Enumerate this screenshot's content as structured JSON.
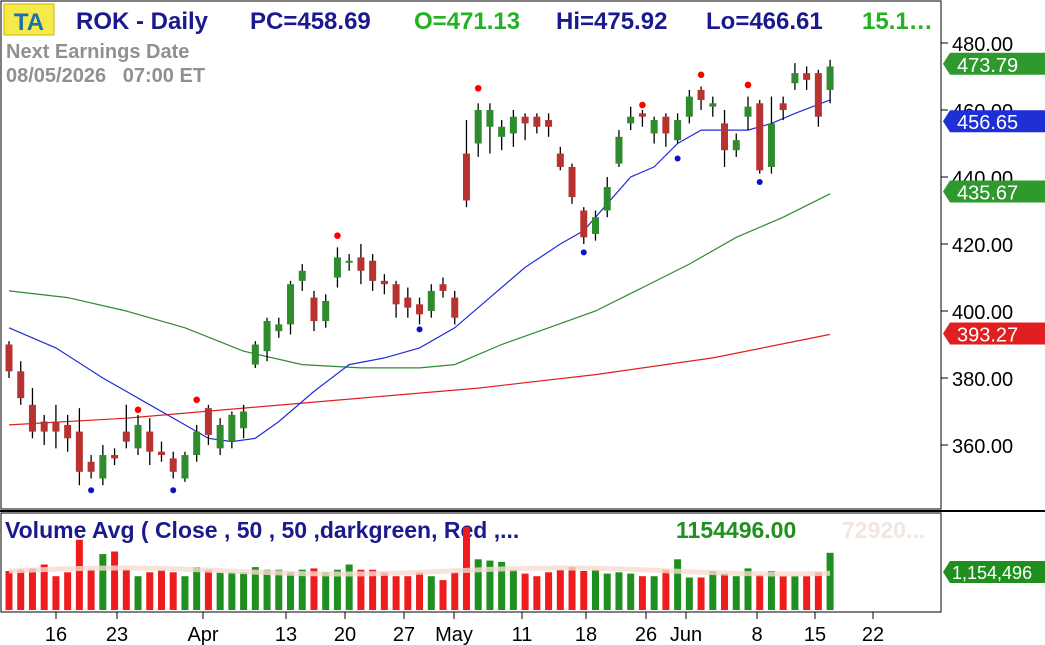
{
  "header": {
    "logo": "TA",
    "symbol": "ROK - Daily",
    "pc": "PC=458.69",
    "open": "O=471.13",
    "high": "Hi=475.92",
    "low": "Lo=466.61",
    "change": "15.1…",
    "earnings_label": "Next Earnings Date",
    "earnings_value": "08/05/2026   07:00 ET"
  },
  "volume_header": {
    "title": "Volume Avg ( Close , 50 , 50 ,darkgreen, Red ,...",
    "value": "1154496.00",
    "faded_value": "72920..."
  },
  "colors": {
    "up": "#2e8b2e",
    "down": "#b83232",
    "ma_fast": "#1f2fd6",
    "ma_mid": "#2e8b2e",
    "ma_slow": "#e02020",
    "header_blue": "#1a1a8c",
    "header_green": "#22b222",
    "marker_high": "#ff0000",
    "marker_low": "#1010c0",
    "vol_up": "#1f8f1f",
    "vol_down": "#ee1c1c"
  },
  "chart_data": {
    "type": "candlestick",
    "price_axis": {
      "ticks": [
        360,
        380,
        400,
        420,
        440,
        460,
        480
      ],
      "tick_labels": [
        "360.00",
        "380.00",
        "400.00",
        "420.00",
        "440.00",
        "460.00",
        "480.00"
      ]
    },
    "x_axis_labels": [
      "16",
      "23",
      "Apr",
      "13",
      "20",
      "27",
      "May",
      "11",
      "18",
      "26",
      "Jun",
      "8",
      "15",
      "22"
    ],
    "price_tags": [
      {
        "value": 473.79,
        "label": "473.79",
        "color": "#2e9a2e"
      },
      {
        "value": 456.65,
        "label": "456.65",
        "color": "#1f2fd6"
      },
      {
        "value": 435.67,
        "label": "435.67",
        "color": "#2e9a2e"
      },
      {
        "value": 393.27,
        "label": "393.27",
        "color": "#e02020"
      }
    ],
    "volume_tag": {
      "label": "1,154,496",
      "color": "#1f8f1f"
    },
    "candles": [
      [
        390,
        382,
        391,
        380,
        "d"
      ],
      [
        382,
        374,
        385,
        372,
        "d"
      ],
      [
        372,
        364,
        377,
        362,
        "d"
      ],
      [
        364,
        367,
        369,
        360,
        "d"
      ],
      [
        367,
        364,
        372,
        359,
        "d"
      ],
      [
        366,
        362,
        369,
        358,
        "d"
      ],
      [
        364,
        352,
        371,
        348,
        "d"
      ],
      [
        352,
        355,
        357,
        350,
        "d"
      ],
      [
        350,
        357,
        360,
        348,
        "u"
      ],
      [
        357,
        356,
        359,
        354,
        "d"
      ],
      [
        364,
        361,
        372,
        359,
        "d"
      ],
      [
        359,
        366,
        369,
        357,
        "u"
      ],
      [
        364,
        358,
        368,
        354,
        "d"
      ],
      [
        358,
        357,
        361,
        355,
        "d"
      ],
      [
        356,
        352,
        358,
        350,
        "d"
      ],
      [
        350,
        357,
        358,
        349,
        "u"
      ],
      [
        357,
        364,
        366,
        355,
        "u"
      ],
      [
        371,
        363,
        372,
        360,
        "d"
      ],
      [
        359,
        366,
        368,
        357,
        "u"
      ],
      [
        361,
        369,
        370,
        359,
        "u"
      ],
      [
        365,
        370,
        372,
        362,
        "u"
      ],
      [
        384,
        390,
        391,
        383,
        "u"
      ],
      [
        388,
        397,
        398,
        385,
        "u"
      ],
      [
        394,
        396,
        398,
        392,
        "u"
      ],
      [
        396,
        408,
        409,
        393,
        "u"
      ],
      [
        409,
        412,
        414,
        406,
        "u"
      ],
      [
        404,
        397,
        406,
        394,
        "d"
      ],
      [
        397,
        403,
        405,
        395,
        "u"
      ],
      [
        410,
        416,
        419,
        407,
        "u"
      ],
      [
        415,
        415,
        417,
        412,
        "u"
      ],
      [
        416,
        412,
        420,
        408,
        "d"
      ],
      [
        415,
        409,
        417,
        406,
        "d"
      ],
      [
        409,
        408,
        411,
        405,
        "d"
      ],
      [
        408,
        402,
        409,
        398,
        "d"
      ],
      [
        404,
        401,
        407,
        398,
        "d"
      ],
      [
        402,
        399,
        404,
        396,
        "d"
      ],
      [
        400,
        406,
        408,
        398,
        "u"
      ],
      [
        408,
        406,
        410,
        404,
        "d"
      ],
      [
        404,
        398,
        406,
        396,
        "d"
      ],
      [
        447,
        433,
        457,
        431,
        "d"
      ],
      [
        450,
        460,
        462,
        446,
        "u"
      ],
      [
        455,
        460,
        462,
        447,
        "u"
      ],
      [
        452,
        455,
        457,
        448,
        "u"
      ],
      [
        453,
        458,
        460,
        449,
        "u"
      ],
      [
        458,
        456,
        459,
        451,
        "d"
      ],
      [
        458,
        455,
        459,
        453,
        "d"
      ],
      [
        457,
        455,
        459,
        452,
        "d"
      ],
      [
        447,
        443,
        449,
        442,
        "d"
      ],
      [
        443,
        434,
        444,
        432,
        "d"
      ],
      [
        430,
        422,
        431,
        420,
        "d"
      ],
      [
        423,
        428,
        430,
        421,
        "u"
      ],
      [
        430,
        437,
        440,
        428,
        "u"
      ],
      [
        444,
        452,
        454,
        443,
        "u"
      ],
      [
        456,
        458,
        461,
        454,
        "u"
      ],
      [
        459,
        458,
        460,
        455,
        "d"
      ],
      [
        453,
        457,
        458,
        450,
        "u"
      ],
      [
        458,
        453,
        459,
        449,
        "d"
      ],
      [
        451,
        457,
        459,
        450,
        "u"
      ],
      [
        458,
        464,
        466,
        456,
        "u"
      ],
      [
        466,
        463,
        467,
        460,
        "d"
      ],
      [
        461,
        462,
        464,
        458,
        "u"
      ],
      [
        456,
        448,
        460,
        443,
        "d"
      ],
      [
        448,
        451,
        453,
        446,
        "u"
      ],
      [
        458,
        461,
        464,
        454,
        "u"
      ],
      [
        462,
        442,
        463,
        441,
        "d"
      ],
      [
        443,
        456,
        464,
        441,
        "u"
      ],
      [
        462,
        460,
        464,
        457,
        "d"
      ],
      [
        468,
        471,
        474,
        466,
        "u"
      ],
      [
        471,
        469,
        473,
        466,
        "d"
      ],
      [
        471,
        458,
        472,
        455,
        "d"
      ],
      [
        466,
        473,
        475,
        462,
        "u"
      ]
    ],
    "ma_fast": [
      [
        0,
        395
      ],
      [
        4,
        389
      ],
      [
        8,
        380
      ],
      [
        12,
        372
      ],
      [
        15,
        366
      ],
      [
        17,
        362
      ],
      [
        19,
        361
      ],
      [
        21,
        362
      ],
      [
        23,
        367
      ],
      [
        26,
        376
      ],
      [
        29,
        384
      ],
      [
        32,
        386
      ],
      [
        35,
        389
      ],
      [
        38,
        395
      ],
      [
        41,
        404
      ],
      [
        44,
        413
      ],
      [
        47,
        420
      ],
      [
        49,
        424
      ],
      [
        51,
        432
      ],
      [
        53,
        440
      ],
      [
        55,
        443
      ],
      [
        57,
        450
      ],
      [
        59,
        454
      ],
      [
        61,
        454
      ],
      [
        63,
        454
      ],
      [
        65,
        456
      ],
      [
        67,
        459
      ],
      [
        70,
        463
      ]
    ],
    "ma_mid": [
      [
        0,
        406
      ],
      [
        5,
        404
      ],
      [
        10,
        400
      ],
      [
        15,
        395
      ],
      [
        20,
        388
      ],
      [
        25,
        384
      ],
      [
        30,
        383
      ],
      [
        35,
        383
      ],
      [
        38,
        384
      ],
      [
        42,
        390
      ],
      [
        46,
        395
      ],
      [
        50,
        400
      ],
      [
        54,
        407
      ],
      [
        58,
        414
      ],
      [
        62,
        422
      ],
      [
        66,
        428
      ],
      [
        70,
        435
      ]
    ],
    "ma_slow": [
      [
        0,
        366
      ],
      [
        10,
        368
      ],
      [
        20,
        371
      ],
      [
        30,
        374
      ],
      [
        40,
        377
      ],
      [
        50,
        381
      ],
      [
        60,
        386
      ],
      [
        70,
        393
      ]
    ],
    "high_markers": [
      [
        11,
        369
      ],
      [
        16,
        372
      ],
      [
        28,
        421
      ],
      [
        40,
        465
      ],
      [
        54,
        460
      ],
      [
        59,
        469
      ],
      [
        63,
        466
      ]
    ],
    "low_markers": [
      [
        7,
        348
      ],
      [
        14,
        348
      ],
      [
        35,
        396
      ],
      [
        49,
        419
      ],
      [
        57,
        447
      ],
      [
        64,
        440
      ]
    ],
    "volume": [
      30,
      31,
      32,
      35,
      26,
      29,
      54,
      31,
      43,
      45,
      31,
      26,
      29,
      31,
      29,
      26,
      33,
      31,
      29,
      29,
      29,
      33,
      31,
      31,
      29,
      31,
      32,
      29,
      31,
      35,
      31,
      31,
      29,
      26,
      26,
      29,
      26,
      23,
      29,
      64,
      39,
      38,
      37,
      31,
      28,
      26,
      29,
      31,
      33,
      30,
      31,
      28,
      29,
      28,
      26,
      26,
      31,
      39,
      25,
      25,
      30,
      28,
      26,
      32,
      27,
      30,
      26,
      26,
      26,
      29,
      44
    ]
  }
}
